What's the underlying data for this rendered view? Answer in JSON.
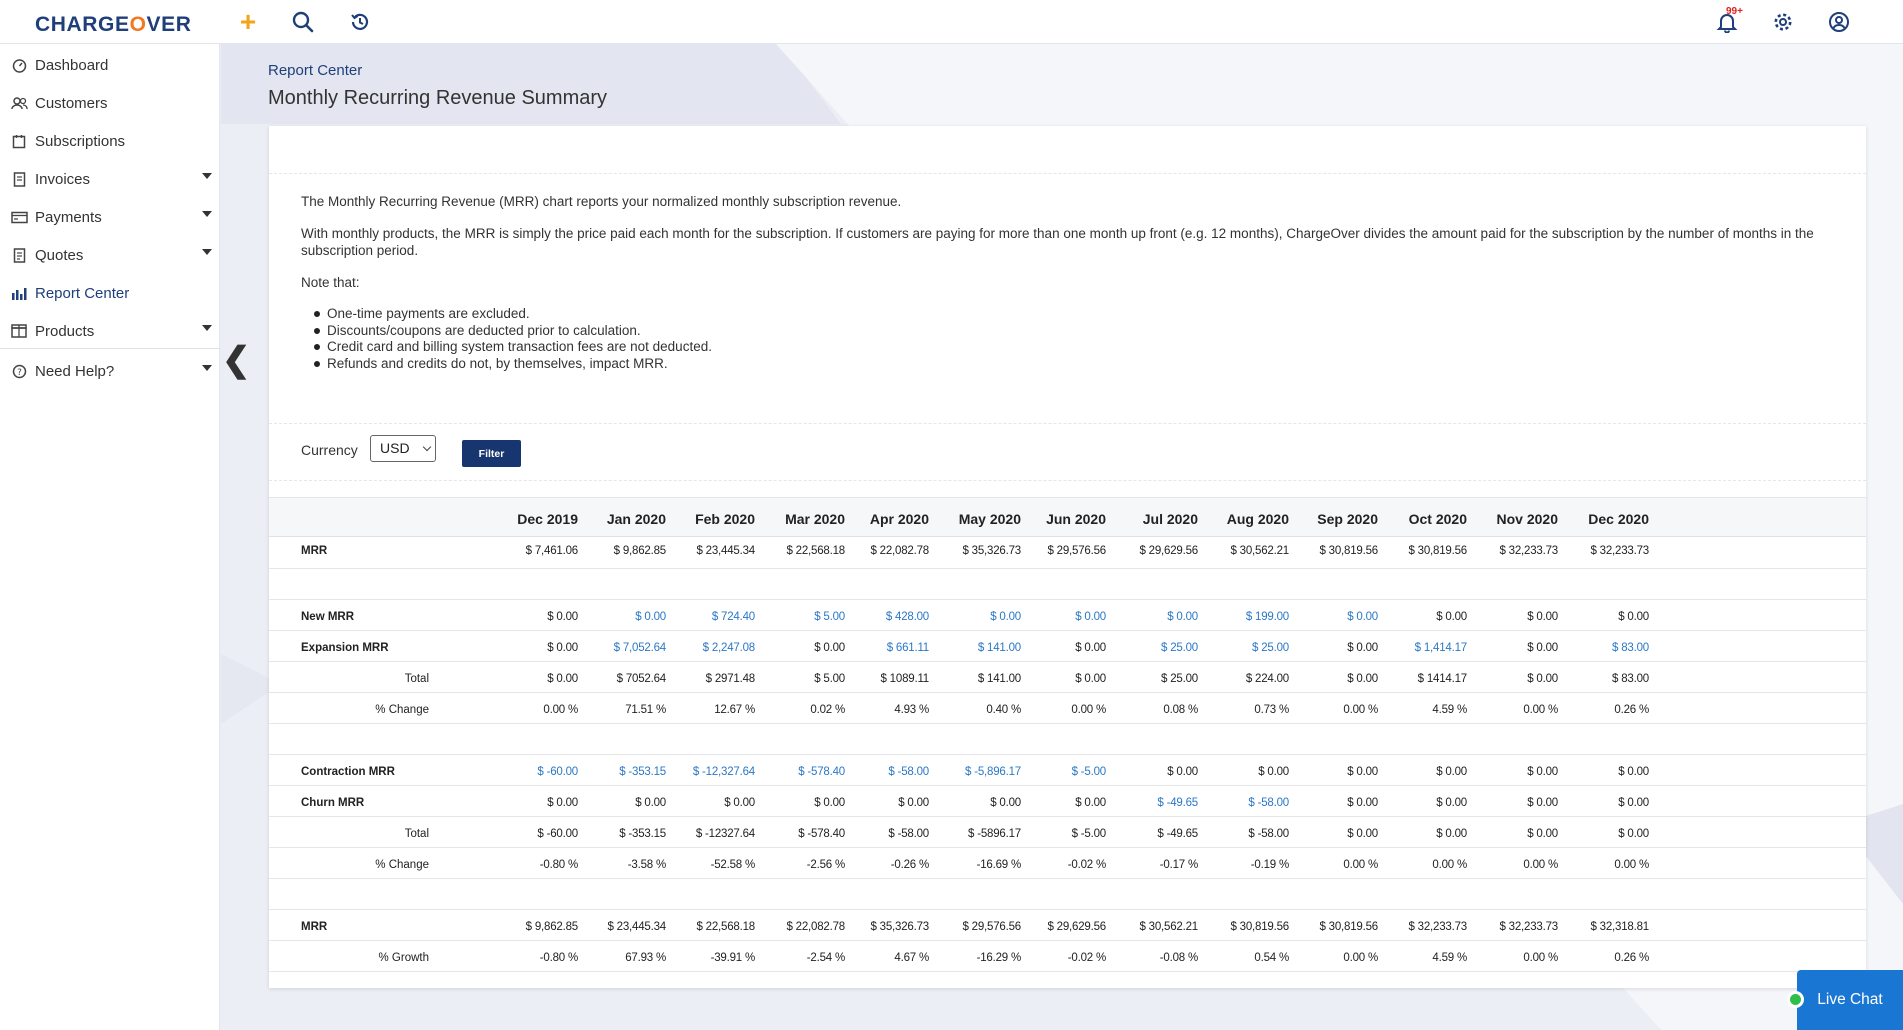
{
  "app": {
    "logo_pre": "CHARGE",
    "logo_o": "O",
    "logo_post": "VER",
    "notifications_badge": "99+"
  },
  "icons": {
    "add": "plus-icon",
    "search": "search-icon",
    "history": "history-icon",
    "notifications": "bell-icon",
    "settings": "gear-icon",
    "account": "user-icon"
  },
  "colors": {
    "brand": "#1e3f7a",
    "accent": "#f07a22",
    "link_blue": "#2b78c5",
    "button": "#17356f",
    "live_chat": "#1976d2"
  },
  "sidebar": {
    "items": [
      {
        "label": "Dashboard",
        "icon": "dashboard-icon"
      },
      {
        "label": "Customers",
        "icon": "customers-icon"
      },
      {
        "label": "Subscriptions",
        "icon": "subscriptions-icon"
      },
      {
        "label": "Invoices",
        "icon": "invoices-icon"
      },
      {
        "label": "Payments",
        "icon": "payments-icon"
      },
      {
        "label": "Quotes",
        "icon": "quotes-icon"
      },
      {
        "label": "Report Center",
        "icon": "report-center-icon"
      },
      {
        "label": "Products",
        "icon": "products-icon"
      },
      {
        "label": "Need Help?",
        "icon": "help-icon"
      }
    ],
    "collapse": "❮"
  },
  "page": {
    "breadcrumb": "Report Center",
    "title": "Monthly Recurring Revenue Summary"
  },
  "intro": {
    "p1": "The Monthly Recurring Revenue (MRR) chart reports your normalized monthly subscription revenue.",
    "p2": "With monthly products, the MRR is simply the price paid each month for the subscription. If customers are paying for more than one month up front (e.g. 12 months), ChargeOver divides the amount paid for the subscription by the number of months in the subscription period.",
    "note": "Note that:",
    "bullets": [
      "One-time payments are excluded.",
      "Discounts/coupons are deducted prior to calculation.",
      "Credit card and billing system transaction fees are not deducted.",
      "Refunds and credits do not, by themselves, impact MRR."
    ]
  },
  "filter": {
    "currency_label": "Currency",
    "currency_value": "USD",
    "button": "Filter"
  },
  "table": {
    "months": [
      "Dec 2019",
      "Jan 2020",
      "Feb 2020",
      "Mar 2020",
      "Apr 2020",
      "May 2020",
      "Jun 2020",
      "Jul 2020",
      "Aug 2020",
      "Sep 2020",
      "Oct 2020",
      "Nov 2020",
      "Dec 2020"
    ],
    "rows": [
      {
        "label": "MRR",
        "bold": true,
        "values": [
          "$ 7,461.06",
          "$ 9,862.85",
          "$ 23,445.34",
          "$ 22,568.18",
          "$ 22,082.78",
          "$ 35,326.73",
          "$ 29,576.56",
          "$ 29,629.56",
          "$ 30,562.21",
          "$ 30,819.56",
          "$ 30,819.56",
          "$ 32,233.73",
          "$ 32,233.73"
        ],
        "blue": []
      },
      {
        "label": "New MRR",
        "bold": true,
        "values": [
          "$ 0.00",
          "$ 0.00",
          "$ 724.40",
          "$ 5.00",
          "$ 428.00",
          "$ 0.00",
          "$ 0.00",
          "$ 0.00",
          "$ 199.00",
          "$ 0.00",
          "$ 0.00",
          "$ 0.00",
          "$ 0.00"
        ],
        "blue": [
          1,
          2,
          3,
          4,
          5,
          6,
          7,
          8,
          9
        ]
      },
      {
        "label": "Expansion MRR",
        "bold": true,
        "values": [
          "$ 0.00",
          "$ 7,052.64",
          "$ 2,247.08",
          "$ 0.00",
          "$ 661.11",
          "$ 141.00",
          "$ 0.00",
          "$ 25.00",
          "$ 25.00",
          "$ 0.00",
          "$ 1,414.17",
          "$ 0.00",
          "$ 83.00"
        ],
        "blue": [
          1,
          2,
          4,
          5,
          7,
          8,
          10,
          12
        ]
      },
      {
        "label": "Total",
        "sub": true,
        "values": [
          "$ 0.00",
          "$ 7052.64",
          "$ 2971.48",
          "$ 5.00",
          "$ 1089.11",
          "$ 141.00",
          "$ 0.00",
          "$ 25.00",
          "$ 224.00",
          "$ 0.00",
          "$ 1414.17",
          "$ 0.00",
          "$ 83.00"
        ],
        "blue": []
      },
      {
        "label": "% Change",
        "sub": true,
        "values": [
          "0.00 %",
          "71.51 %",
          "12.67 %",
          "0.02 %",
          "4.93 %",
          "0.40 %",
          "0.00 %",
          "0.08 %",
          "0.73 %",
          "0.00 %",
          "4.59 %",
          "0.00 %",
          "0.26 %"
        ],
        "blue": []
      },
      {
        "label": "Contraction MRR",
        "bold": true,
        "values": [
          "$ -60.00",
          "$ -353.15",
          "$ -12,327.64",
          "$ -578.40",
          "$ -58.00",
          "$ -5,896.17",
          "$ -5.00",
          "$ 0.00",
          "$ 0.00",
          "$ 0.00",
          "$ 0.00",
          "$ 0.00",
          "$ 0.00"
        ],
        "blue": [
          0,
          1,
          2,
          3,
          4,
          5,
          6
        ]
      },
      {
        "label": "Churn MRR",
        "bold": true,
        "values": [
          "$ 0.00",
          "$ 0.00",
          "$ 0.00",
          "$ 0.00",
          "$ 0.00",
          "$ 0.00",
          "$ 0.00",
          "$ -49.65",
          "$ -58.00",
          "$ 0.00",
          "$ 0.00",
          "$ 0.00",
          "$ 0.00"
        ],
        "blue": [
          7,
          8
        ]
      },
      {
        "label": "Total",
        "sub": true,
        "values": [
          "$ -60.00",
          "$ -353.15",
          "$ -12327.64",
          "$ -578.40",
          "$ -58.00",
          "$ -5896.17",
          "$ -5.00",
          "$ -49.65",
          "$ -58.00",
          "$ 0.00",
          "$ 0.00",
          "$ 0.00",
          "$ 0.00"
        ],
        "blue": []
      },
      {
        "label": "% Change",
        "sub": true,
        "values": [
          "-0.80 %",
          "-3.58 %",
          "-52.58 %",
          "-2.56 %",
          "-0.26 %",
          "-16.69 %",
          "-0.02 %",
          "-0.17 %",
          "-0.19 %",
          "0.00 %",
          "0.00 %",
          "0.00 %",
          "0.00 %"
        ],
        "blue": []
      },
      {
        "label": "MRR",
        "bold": true,
        "values": [
          "$ 9,862.85",
          "$ 23,445.34",
          "$ 22,568.18",
          "$ 22,082.78",
          "$ 35,326.73",
          "$ 29,576.56",
          "$ 29,629.56",
          "$ 30,562.21",
          "$ 30,819.56",
          "$ 30,819.56",
          "$ 32,233.73",
          "$ 32,233.73",
          "$ 32,318.81"
        ],
        "blue": []
      },
      {
        "label": "% Growth",
        "sub": true,
        "values": [
          "-0.80 %",
          "67.93 %",
          "-39.91 %",
          "-2.54 %",
          "4.67 %",
          "-16.29 %",
          "-0.02 %",
          "-0.08 %",
          "0.54 %",
          "0.00 %",
          "4.59 %",
          "0.00 %",
          "0.26 %"
        ],
        "blue": []
      }
    ]
  },
  "live_chat": {
    "label": "Live Chat"
  }
}
